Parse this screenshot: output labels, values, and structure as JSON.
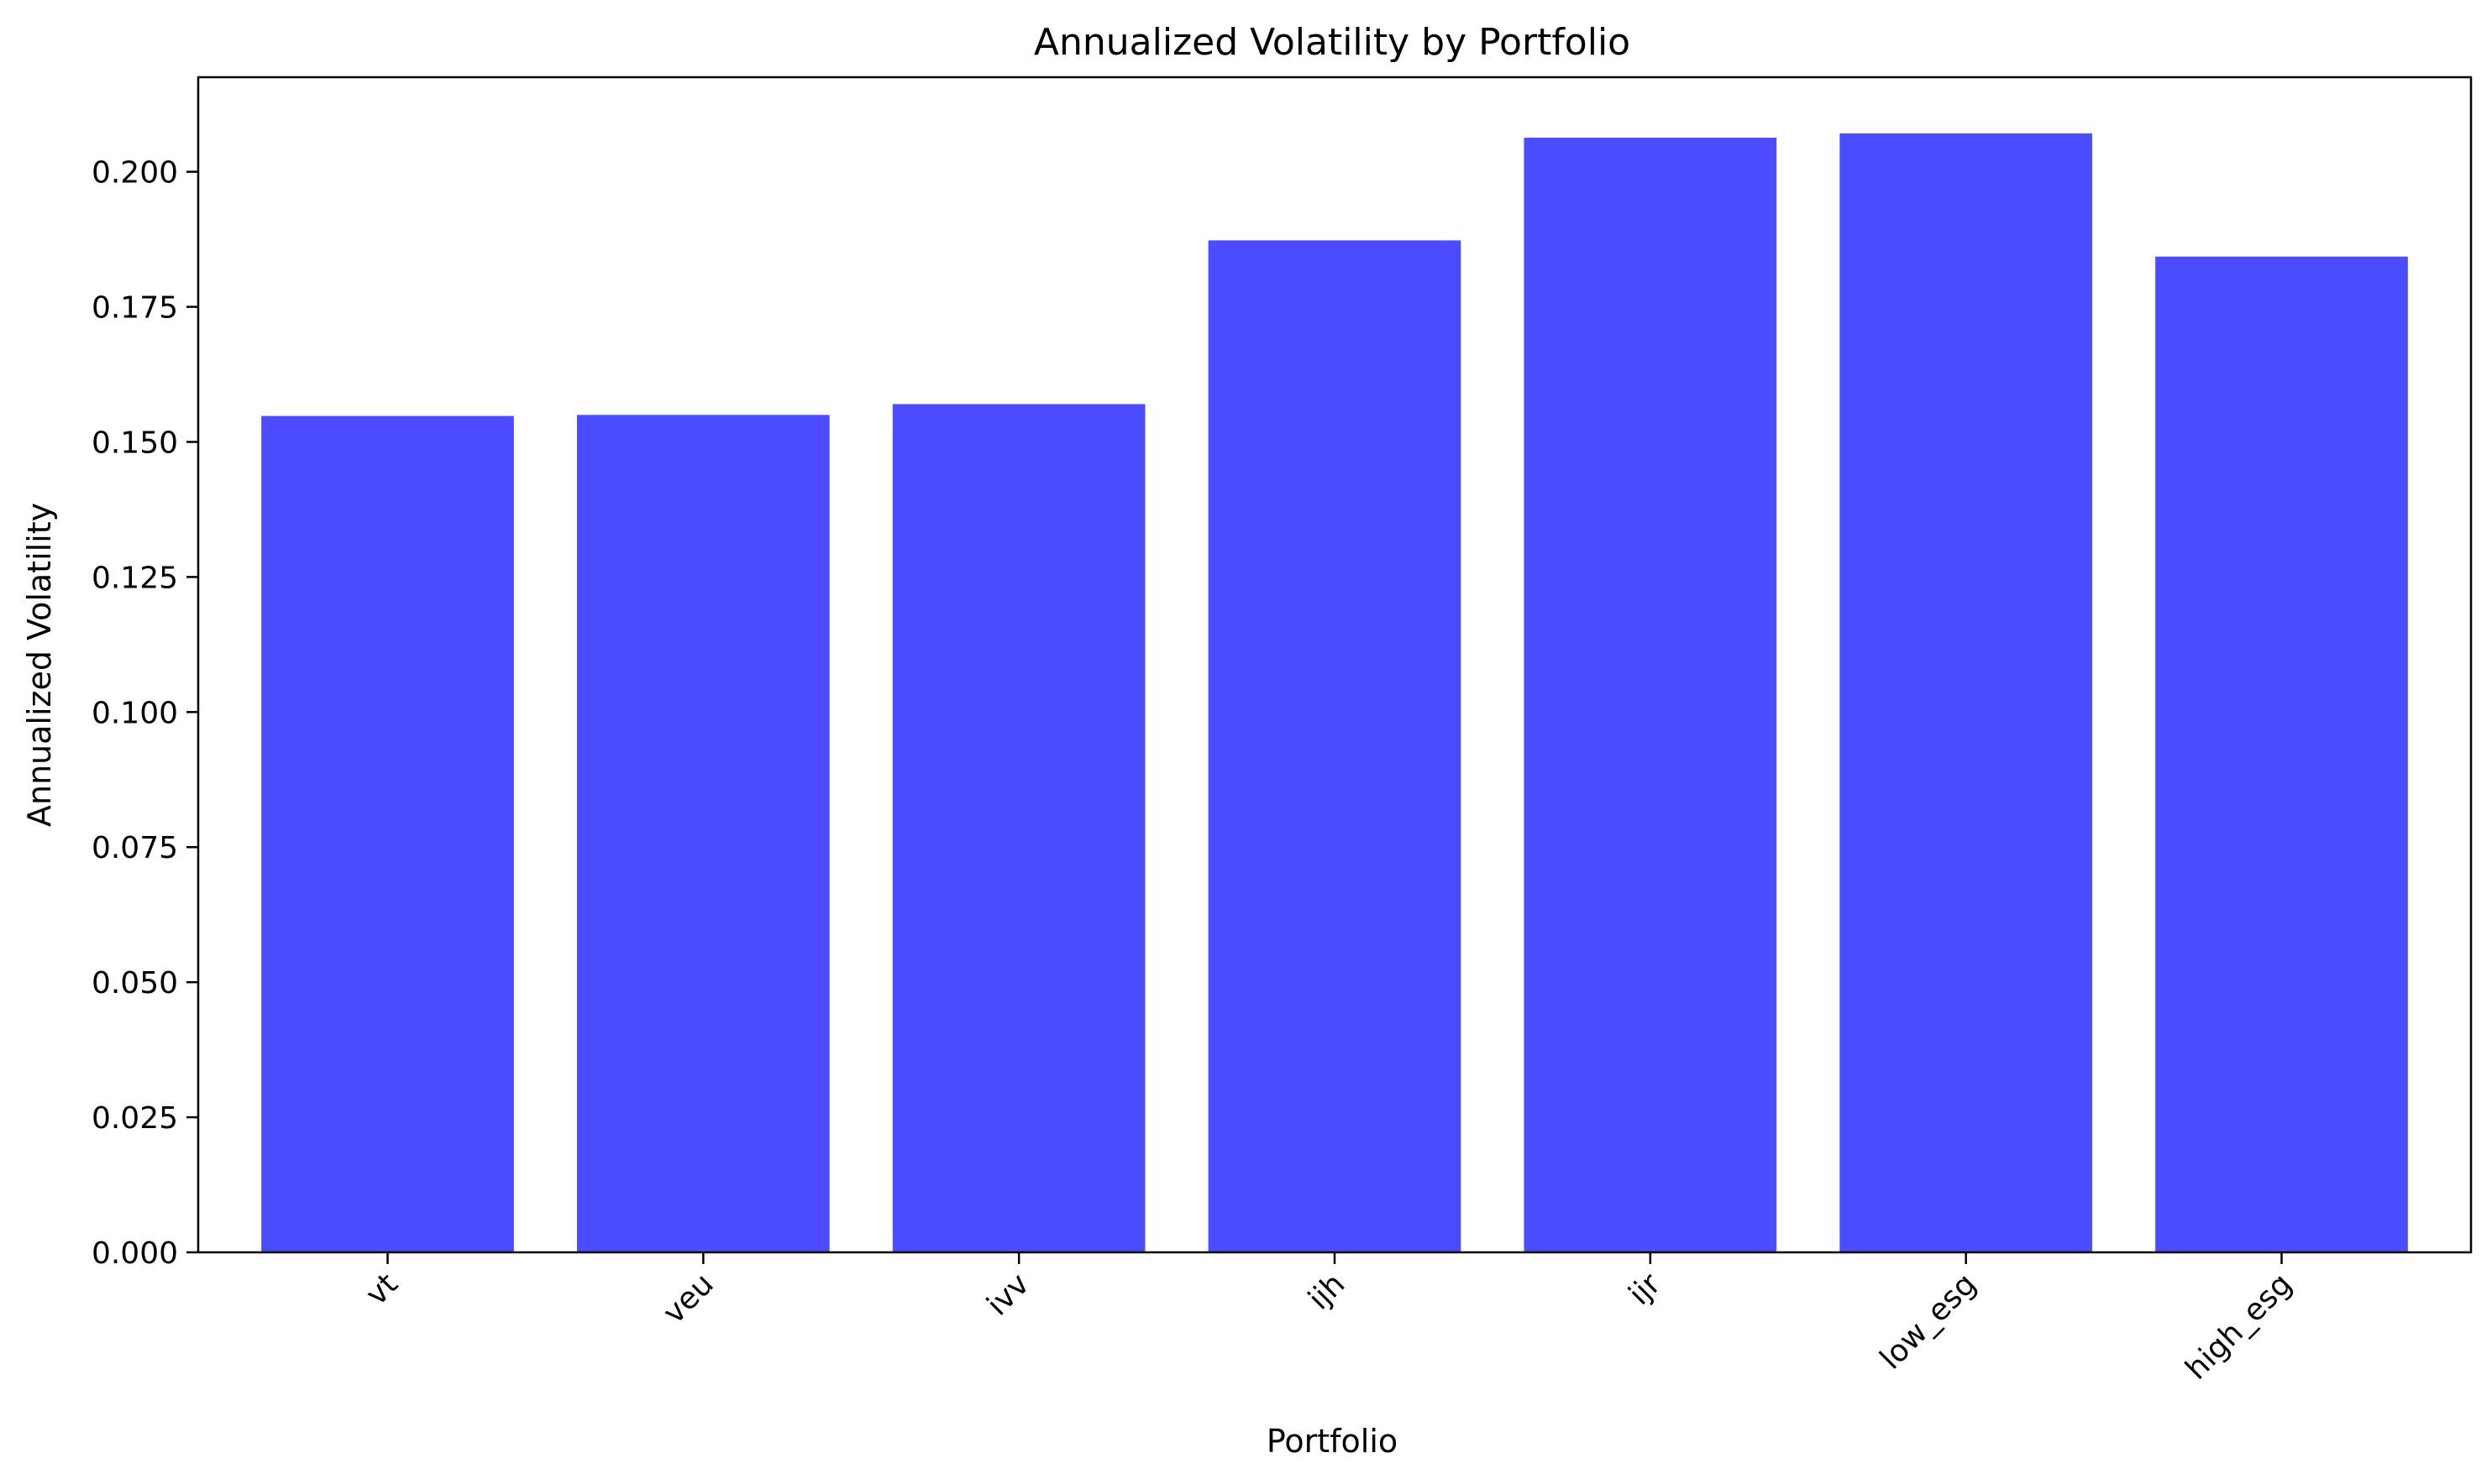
{
  "chart_data": {
    "type": "bar",
    "title": "Annualized Volatility by Portfolio",
    "xlabel": "Portfolio",
    "ylabel": "Annualized Volatility",
    "categories": [
      "vt",
      "veu",
      "ivv",
      "ijh",
      "ijr",
      "low_esg",
      "high_esg"
    ],
    "values": [
      0.1548,
      0.155,
      0.157,
      0.1873,
      0.2063,
      0.2071,
      0.1843
    ],
    "ylim": [
      0,
      0.2175
    ],
    "yticks": [
      "0.000",
      "0.025",
      "0.050",
      "0.075",
      "0.100",
      "0.125",
      "0.150",
      "0.175",
      "0.200"
    ],
    "bar_color": "#4b4bff",
    "grid": false,
    "legend": "none",
    "xtick_rotation_deg": 45
  }
}
